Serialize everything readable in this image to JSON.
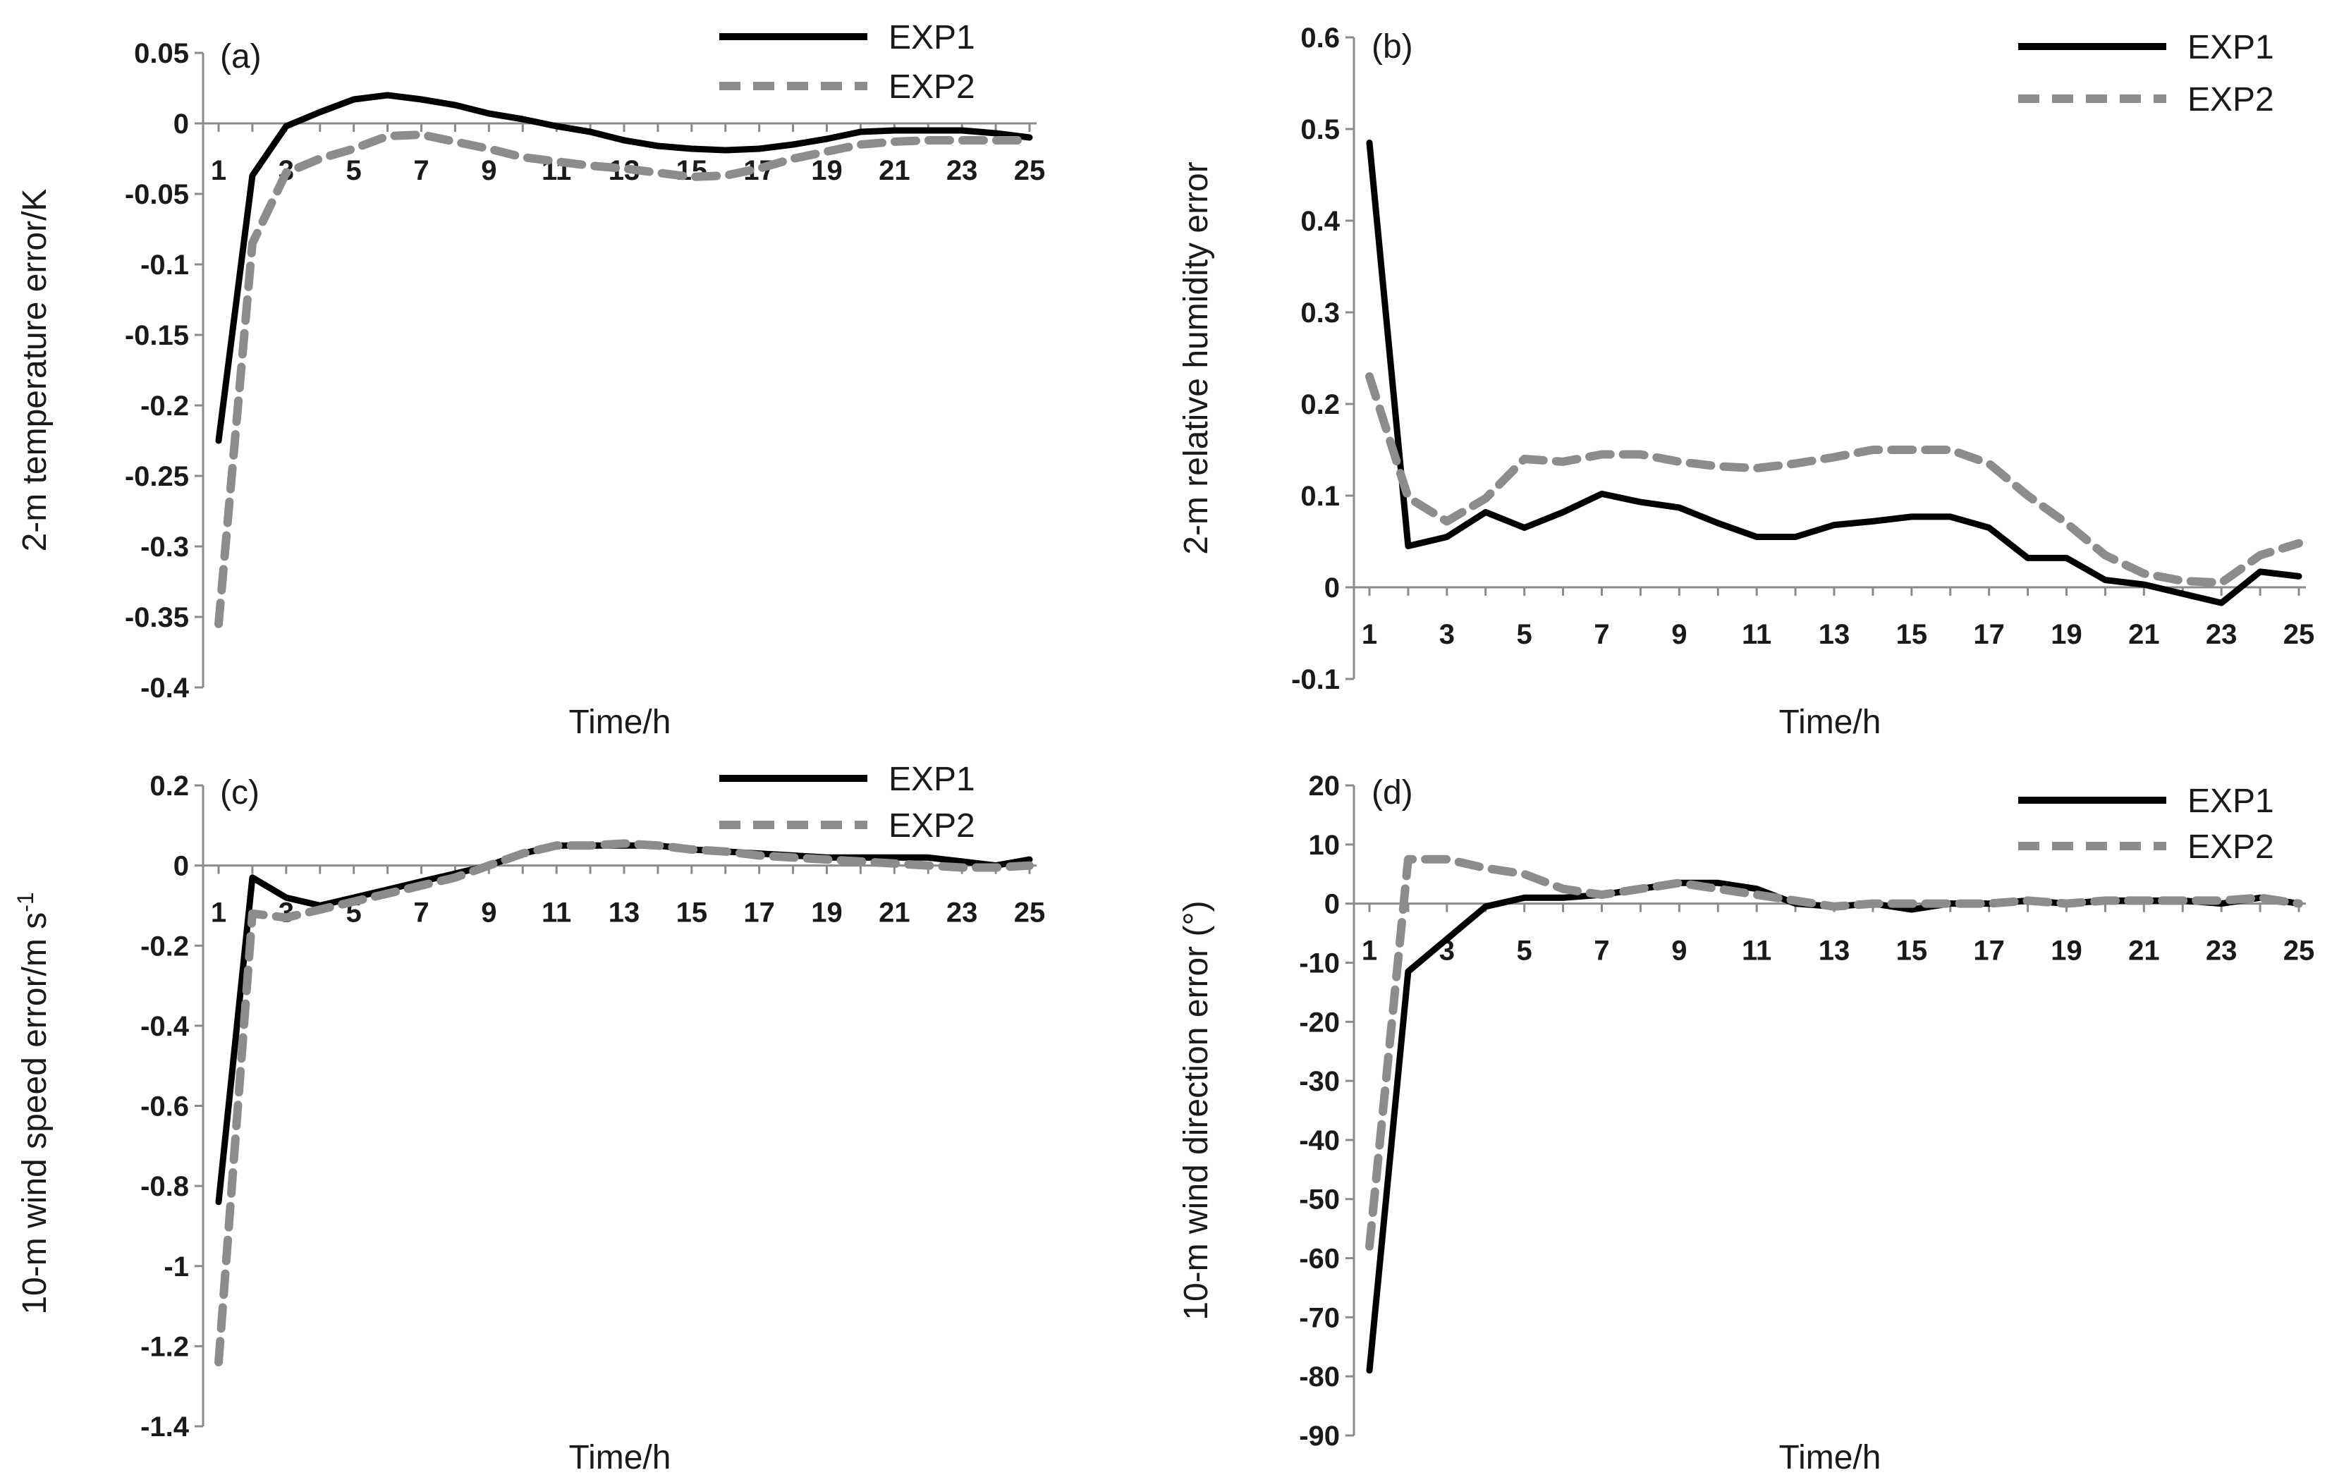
{
  "chart_data": [
    {
      "type": "line",
      "panel_label": "(a)",
      "xlabel": "Time/h",
      "ylabel": "2-m temperature error/K",
      "ylim": [
        -0.4,
        0.05
      ],
      "yticks": [
        0.05,
        0,
        -0.05,
        -0.1,
        -0.15,
        -0.2,
        -0.25,
        -0.3,
        -0.35,
        -0.4
      ],
      "ytick_labels": [
        "0.05",
        "0",
        "-0.05",
        "-0.1",
        "-0.15",
        "-0.2",
        "-0.25",
        "-0.3",
        "-0.35",
        "-0.4"
      ],
      "x": [
        1,
        2,
        3,
        4,
        5,
        6,
        7,
        8,
        9,
        10,
        11,
        12,
        13,
        14,
        15,
        16,
        17,
        18,
        19,
        20,
        21,
        22,
        23,
        24,
        25
      ],
      "xtick_labels": [
        "1",
        "3",
        "5",
        "7",
        "9",
        "11",
        "13",
        "15",
        "17",
        "19",
        "21",
        "23",
        "25"
      ],
      "legend": "top-right",
      "series": [
        {
          "name": "EXP1",
          "style": "solid",
          "color": "#000000",
          "values": [
            -0.225,
            -0.037,
            -0.002,
            0.008,
            0.017,
            0.02,
            0.017,
            0.013,
            0.007,
            0.003,
            -0.002,
            -0.006,
            -0.012,
            -0.016,
            -0.018,
            -0.019,
            -0.018,
            -0.015,
            -0.011,
            -0.006,
            -0.005,
            -0.005,
            -0.005,
            -0.007,
            -0.01
          ]
        },
        {
          "name": "EXP2",
          "style": "dashed",
          "color": "#8c8c8c",
          "values": [
            -0.355,
            -0.085,
            -0.035,
            -0.025,
            -0.018,
            -0.009,
            -0.008,
            -0.013,
            -0.018,
            -0.024,
            -0.027,
            -0.03,
            -0.032,
            -0.035,
            -0.038,
            -0.037,
            -0.032,
            -0.025,
            -0.02,
            -0.015,
            -0.013,
            -0.012,
            -0.012,
            -0.012,
            -0.012
          ]
        }
      ]
    },
    {
      "type": "line",
      "panel_label": "(b)",
      "xlabel": "Time/h",
      "ylabel": "2-m relative humidity error",
      "ylim": [
        -0.1,
        0.6
      ],
      "yticks": [
        0.6,
        0.5,
        0.4,
        0.3,
        0.2,
        0.1,
        0,
        -0.1
      ],
      "ytick_labels": [
        "0.6",
        "0.5",
        "0.4",
        "0.3",
        "0.2",
        "0.1",
        "0",
        "-0.1"
      ],
      "x": [
        1,
        2,
        3,
        4,
        5,
        6,
        7,
        8,
        9,
        10,
        11,
        12,
        13,
        14,
        15,
        16,
        17,
        18,
        19,
        20,
        21,
        22,
        23,
        24,
        25
      ],
      "xtick_labels": [
        "1",
        "3",
        "5",
        "7",
        "9",
        "11",
        "13",
        "15",
        "17",
        "19",
        "21",
        "23",
        "25"
      ],
      "legend": "top-right",
      "series": [
        {
          "name": "EXP1",
          "style": "solid",
          "color": "#000000",
          "values": [
            0.485,
            0.045,
            0.055,
            0.082,
            0.065,
            0.082,
            0.102,
            0.093,
            0.087,
            0.07,
            0.055,
            0.055,
            0.068,
            0.072,
            0.077,
            0.077,
            0.065,
            0.032,
            0.032,
            0.008,
            0.003,
            -0.007,
            -0.017,
            0.017,
            0.012
          ]
        },
        {
          "name": "EXP2",
          "style": "dashed",
          "color": "#8c8c8c",
          "values": [
            0.23,
            0.098,
            0.072,
            0.097,
            0.14,
            0.137,
            0.145,
            0.145,
            0.137,
            0.132,
            0.13,
            0.135,
            0.142,
            0.15,
            0.15,
            0.15,
            0.135,
            0.1,
            0.07,
            0.035,
            0.015,
            0.007,
            0.005,
            0.035,
            0.048
          ]
        }
      ]
    },
    {
      "type": "line",
      "panel_label": "(c)",
      "xlabel": "Time/h",
      "ylabel": "10-m wind speed error/m s",
      "ylabel_superscript": "-1",
      "ylim": [
        -1.4,
        0.2
      ],
      "yticks": [
        0.2,
        0,
        -0.2,
        -0.4,
        -0.6,
        -0.8,
        -1,
        -1.2,
        -1.4
      ],
      "ytick_labels": [
        "0.2",
        "0",
        "-0.2",
        "-0.4",
        "-0.6",
        "-0.8",
        "-1",
        "-1.2",
        "-1.4"
      ],
      "x": [
        1,
        2,
        3,
        4,
        5,
        6,
        7,
        8,
        9,
        10,
        11,
        12,
        13,
        14,
        15,
        16,
        17,
        18,
        19,
        20,
        21,
        22,
        23,
        24,
        25
      ],
      "xtick_labels": [
        "1",
        "3",
        "5",
        "7",
        "9",
        "11",
        "13",
        "15",
        "17",
        "19",
        "21",
        "23",
        "25"
      ],
      "legend": "top-right",
      "series": [
        {
          "name": "EXP1",
          "style": "solid",
          "color": "#000000",
          "values": [
            -0.84,
            -0.03,
            -0.08,
            -0.1,
            -0.08,
            -0.06,
            -0.04,
            -0.02,
            0.0,
            0.03,
            0.05,
            0.05,
            0.05,
            0.05,
            0.04,
            0.035,
            0.03,
            0.025,
            0.02,
            0.02,
            0.02,
            0.02,
            0.01,
            0.0,
            0.015
          ]
        },
        {
          "name": "EXP2",
          "style": "dashed",
          "color": "#8c8c8c",
          "values": [
            -1.24,
            -0.12,
            -0.13,
            -0.11,
            -0.09,
            -0.07,
            -0.05,
            -0.03,
            0.0,
            0.03,
            0.05,
            0.05,
            0.055,
            0.05,
            0.04,
            0.035,
            0.025,
            0.02,
            0.015,
            0.01,
            0.005,
            0.0,
            -0.005,
            -0.005,
            0.0
          ]
        }
      ]
    },
    {
      "type": "line",
      "panel_label": "(d)",
      "xlabel": "Time/h",
      "ylabel": "10-m wind direction error (°)",
      "ylim": [
        -90,
        20
      ],
      "yticks": [
        20,
        10,
        0,
        -10,
        -20,
        -30,
        -40,
        -50,
        -60,
        -70,
        -80,
        -90
      ],
      "ytick_labels": [
        "20",
        "10",
        "0",
        "-10",
        "-20",
        "-30",
        "-40",
        "-50",
        "-60",
        "-70",
        "-80",
        "-90"
      ],
      "x": [
        1,
        2,
        3,
        4,
        5,
        6,
        7,
        8,
        9,
        10,
        11,
        12,
        13,
        14,
        15,
        16,
        17,
        18,
        19,
        20,
        21,
        22,
        23,
        24,
        25
      ],
      "xtick_labels": [
        "1",
        "3",
        "5",
        "7",
        "9",
        "11",
        "13",
        "15",
        "17",
        "19",
        "21",
        "23",
        "25"
      ],
      "legend": "top-right",
      "series": [
        {
          "name": "EXP1",
          "style": "solid",
          "color": "#000000",
          "values": [
            -79,
            -11.5,
            -6,
            -0.5,
            1,
            1,
            1.5,
            2.5,
            3.5,
            3.5,
            2.5,
            0,
            -0.5,
            0,
            -1,
            0,
            0,
            0.5,
            0,
            0.5,
            0.5,
            0.5,
            0,
            1,
            0
          ]
        },
        {
          "name": "EXP2",
          "style": "dashed",
          "color": "#8c8c8c",
          "values": [
            -58,
            7.5,
            7.5,
            6,
            5,
            2.5,
            1.5,
            2.5,
            3.5,
            2.5,
            1.5,
            0.5,
            -0.5,
            0,
            0,
            0,
            0,
            0.5,
            0,
            0.5,
            0.5,
            0.5,
            0.5,
            1,
            0
          ]
        }
      ]
    }
  ]
}
